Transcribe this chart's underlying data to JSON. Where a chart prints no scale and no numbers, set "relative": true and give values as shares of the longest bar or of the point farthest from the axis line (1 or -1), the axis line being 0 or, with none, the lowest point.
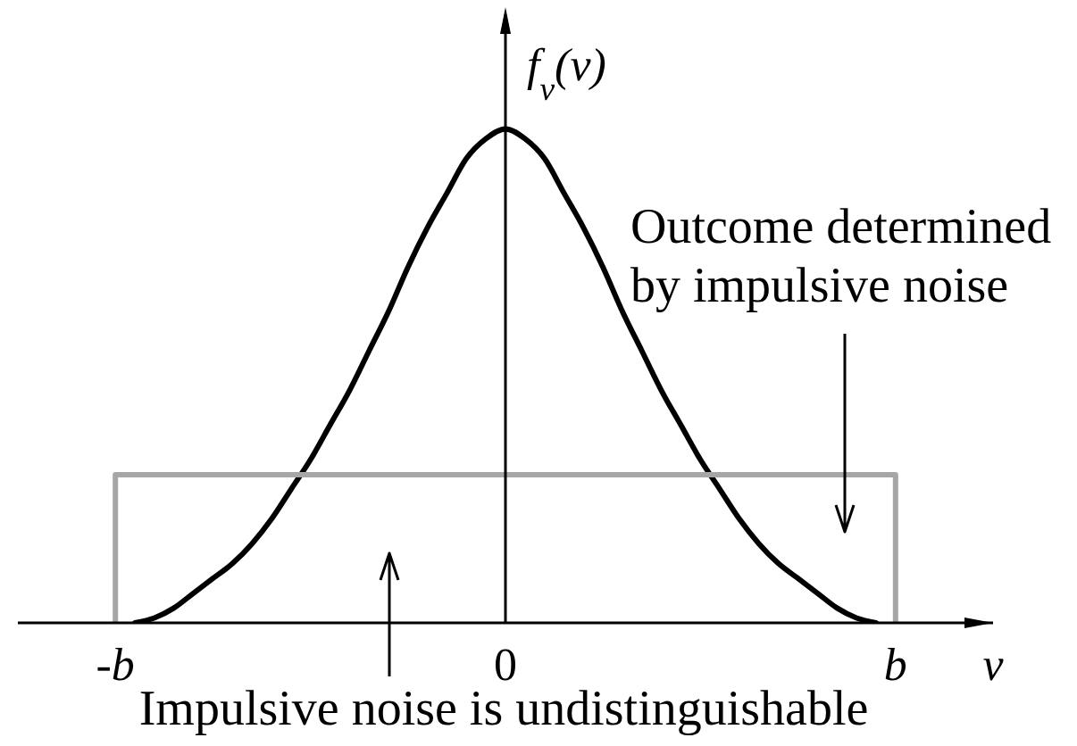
{
  "chart_data": {
    "type": "line",
    "relative": true,
    "xlabel": "v",
    "ylabel": "f$_{v}$(v)",
    "categories": [
      null,
      null,
      null,
      null,
      null,
      "-b",
      null,
      null,
      null,
      null,
      null,
      null,
      null,
      null,
      null,
      null,
      null,
      null,
      null,
      null,
      null,
      null,
      null,
      null,
      null,
      "0",
      null,
      null,
      null,
      null,
      null,
      null,
      null,
      null,
      null,
      null,
      null,
      null,
      null,
      null,
      null,
      null,
      null,
      null,
      null,
      "b",
      null,
      null,
      null,
      null,
      null
    ],
    "annotations": [
      "Outcome determined by impulsive noise",
      "Impulsive noise is undistinguishable"
    ],
    "series": [
      {
        "color": "#000000",
        "values": [
          null,
          null,
          null,
          null,
          null,
          null,
          0,
          0.01,
          0.03,
          0.06,
          0.09,
          0.12,
          0.16,
          0.21,
          0.27,
          0.33,
          0.4,
          0.47,
          0.55,
          0.63,
          0.72,
          0.8,
          0.87,
          0.94,
          0.98,
          1,
          0.98,
          0.94,
          0.87,
          0.8,
          0.72,
          0.63,
          0.55,
          0.47,
          0.4,
          0.33,
          0.27,
          0.21,
          0.16,
          0.12,
          0.09,
          0.06,
          0.03,
          0.01,
          0,
          null,
          null,
          null,
          null,
          null,
          null
        ]
      },
      {
        "color": "#a6a6a6",
        "x": [
          "-b",
          "-b",
          "b",
          "b"
        ],
        "values": [
          0,
          0.3,
          0.3,
          0
        ]
      }
    ]
  }
}
